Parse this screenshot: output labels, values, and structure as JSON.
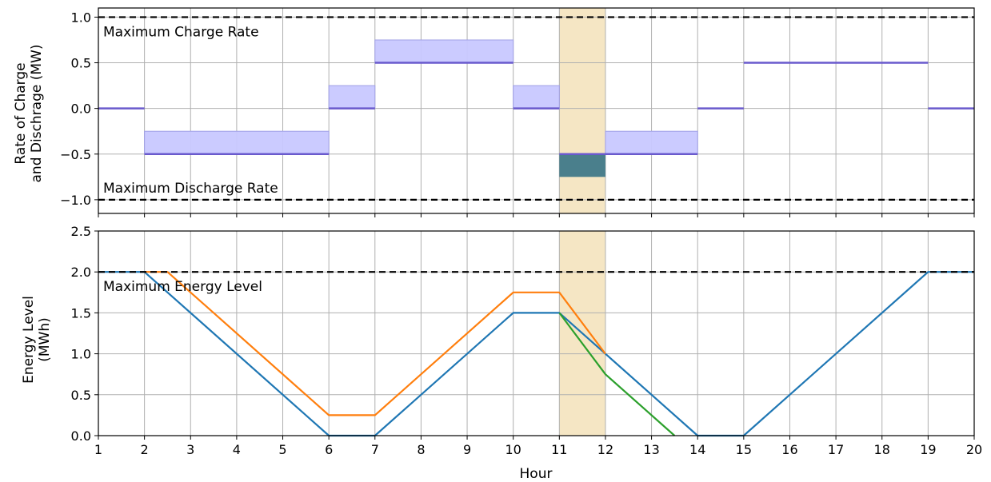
{
  "chart_data": [
    {
      "type": "line",
      "panel": "rate",
      "title": "",
      "xlabel": "",
      "ylabel_line1": "Rate of Charge",
      "ylabel_line2": "and Dischrage (MW)",
      "xlim": [
        1,
        20
      ],
      "ylim": [
        -1.15,
        1.1
      ],
      "xticks": [
        1,
        2,
        3,
        4,
        5,
        6,
        7,
        8,
        9,
        10,
        11,
        12,
        13,
        14,
        15,
        16,
        17,
        18,
        19,
        20
      ],
      "yticks": [
        -1.0,
        -0.5,
        0.0,
        0.5,
        1.0
      ],
      "ytick_labels": [
        "−1.0",
        "−0.5",
        "0.0",
        "0.5",
        "1.0"
      ],
      "grid": true,
      "highlight_hours": [
        11,
        12
      ],
      "reference_lines": [
        {
          "y": 1.0,
          "label": "Maximum Charge Rate"
        },
        {
          "y": -1.0,
          "label": "Maximum Discharge Rate"
        }
      ],
      "rate_steps": [
        {
          "x0": 1,
          "x1": 2,
          "y": 0.0
        },
        {
          "x0": 2,
          "x1": 6,
          "y": -0.5
        },
        {
          "x0": 6,
          "x1": 7,
          "y": 0.0
        },
        {
          "x0": 7,
          "x1": 10,
          "y": 0.5
        },
        {
          "x0": 10,
          "x1": 11,
          "y": 0.0
        },
        {
          "x0": 11,
          "x1": 12,
          "y": -0.5
        },
        {
          "x0": 12,
          "x1": 14,
          "y": -0.5
        },
        {
          "x0": 14,
          "x1": 15,
          "y": 0.0
        },
        {
          "x0": 15,
          "x1": 19,
          "y": 0.5
        },
        {
          "x0": 19,
          "x1": 20,
          "y": 0.0
        }
      ],
      "flex_bands": [
        {
          "x0": 2,
          "x1": 6,
          "y0": -0.5,
          "y1": -0.25
        },
        {
          "x0": 6,
          "x1": 7,
          "y0": 0.0,
          "y1": 0.25
        },
        {
          "x0": 7,
          "x1": 10,
          "y0": 0.5,
          "y1": 0.75
        },
        {
          "x0": 10,
          "x1": 11,
          "y0": 0.0,
          "y1": 0.25
        },
        {
          "x0": 12,
          "x1": 14,
          "y0": -0.5,
          "y1": -0.25
        }
      ],
      "dark_band": {
        "x0": 11,
        "x1": 12,
        "y0": -0.75,
        "y1": -0.5
      }
    },
    {
      "type": "line",
      "panel": "energy",
      "title": "",
      "xlabel": "Hour",
      "ylabel_line1": "Energy Level",
      "ylabel_line2": "(MWh)",
      "xlim": [
        1,
        20
      ],
      "ylim": [
        0,
        2.5
      ],
      "xticks": [
        1,
        2,
        3,
        4,
        5,
        6,
        7,
        8,
        9,
        10,
        11,
        12,
        13,
        14,
        15,
        16,
        17,
        18,
        19,
        20
      ],
      "yticks": [
        0.0,
        0.5,
        1.0,
        1.5,
        2.0,
        2.5
      ],
      "ytick_labels": [
        "0.0",
        "0.5",
        "1.0",
        "1.5",
        "2.0",
        "2.5"
      ],
      "grid": true,
      "highlight_hours": [
        11,
        12
      ],
      "reference_lines": [
        {
          "y": 2.0,
          "label": "Maximum Energy Level"
        }
      ],
      "series": [
        {
          "color": "#1f77b4",
          "points": [
            [
              1,
              2.0
            ],
            [
              2,
              2.0
            ],
            [
              6,
              0.0
            ],
            [
              7,
              0.0
            ],
            [
              10,
              1.5
            ],
            [
              11,
              1.5
            ],
            [
              12,
              1.0
            ],
            [
              14,
              0.0
            ],
            [
              15,
              0.0
            ],
            [
              19,
              2.0
            ],
            [
              20,
              2.0
            ]
          ]
        },
        {
          "color": "#ff7f0e",
          "points": [
            [
              2,
              2.0
            ],
            [
              2.5,
              2.0
            ],
            [
              6,
              0.25
            ],
            [
              7,
              0.25
            ],
            [
              10,
              1.75
            ],
            [
              11,
              1.75
            ],
            [
              12,
              1.0
            ]
          ]
        },
        {
          "color": "#2ca02c",
          "points": [
            [
              11,
              1.5
            ],
            [
              12,
              0.75
            ],
            [
              13.5,
              0.0
            ]
          ]
        }
      ]
    }
  ],
  "colors": {
    "rate_line": "#6a5acd",
    "flex_fill": "#c8c8ff",
    "flex_edge": "#a0a0e6",
    "dark_fill": "#4a7f8c",
    "highlight": "#f5e6c4",
    "grid": "#b0b0b0"
  }
}
